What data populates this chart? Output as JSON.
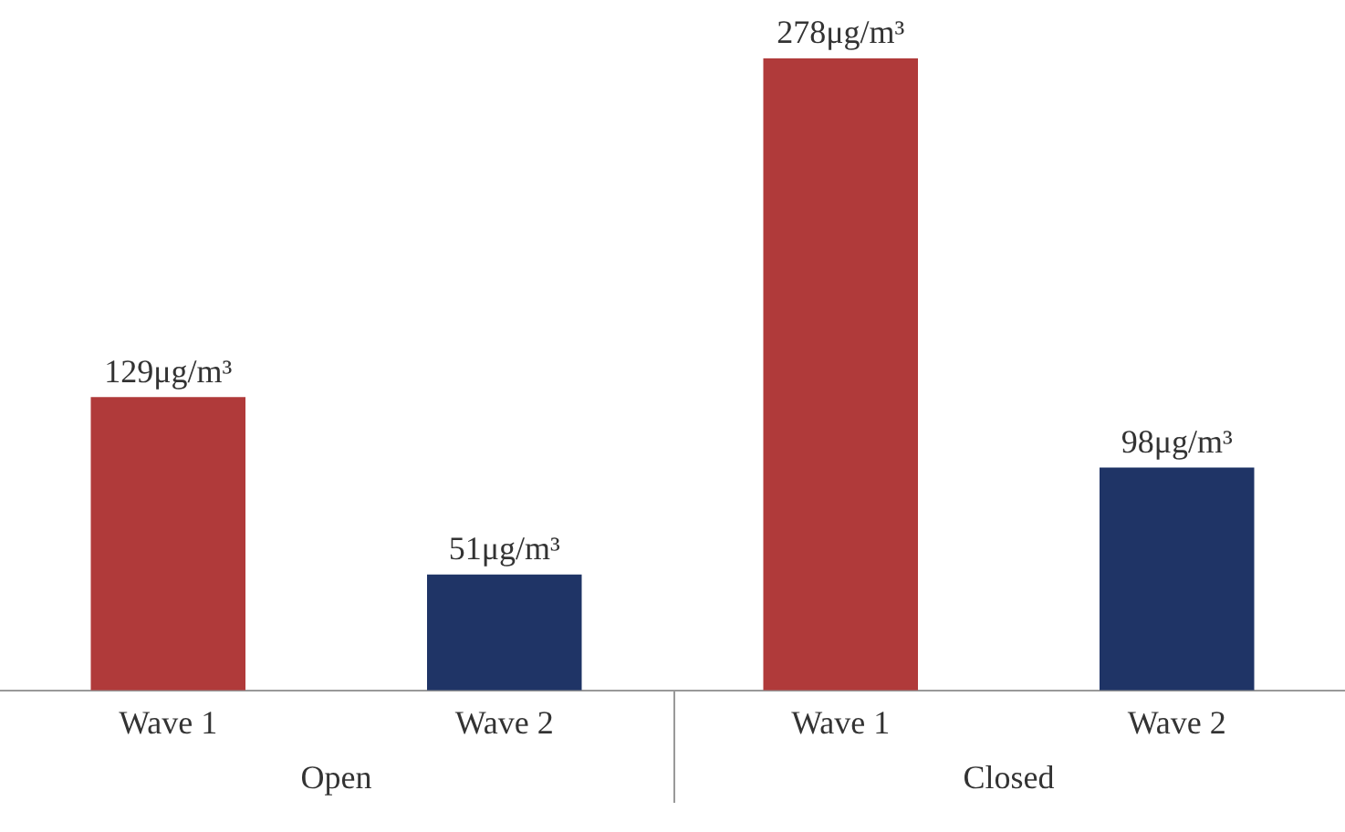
{
  "chart_data": {
    "type": "bar",
    "categories": [
      "Wave 1",
      "Wave 2",
      "Wave 1",
      "Wave 2"
    ],
    "values": [
      129,
      51,
      278,
      98
    ],
    "colors": [
      "#b03a3a",
      "#1f3466",
      "#b03a3a",
      "#1f3466"
    ],
    "value_labels": [
      "129μg/m³",
      "51μg/m³",
      "278μg/m³",
      "98μg/m³"
    ],
    "annotations": [
      "Open",
      "Closed"
    ],
    "grid": false,
    "legend": false,
    "tick_labels": "x"
  }
}
